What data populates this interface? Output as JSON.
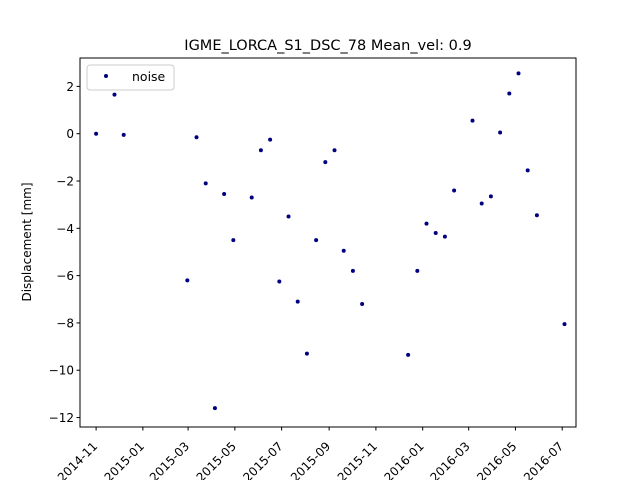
{
  "chart_data": {
    "type": "scatter",
    "title": "IGME_LORCA_S1_DSC_78     Mean_vel: 0.9",
    "xlabel": "",
    "ylabel": "Displacement [mm]",
    "xlim": [
      "2014-10-11",
      "2016-07-19"
    ],
    "ylim": [
      -12.4,
      3.2
    ],
    "xticks": [
      "2014-11",
      "2015-01",
      "2015-03",
      "2015-05",
      "2015-07",
      "2015-09",
      "2015-11",
      "2016-01",
      "2016-03",
      "2016-05",
      "2016-07"
    ],
    "yticks": [
      2,
      0,
      -2,
      -4,
      -6,
      -8,
      -10,
      -12
    ],
    "grid": false,
    "legend": {
      "location": "top-left",
      "entries": [
        "noise"
      ]
    },
    "series": [
      {
        "name": "noise",
        "color": "#000080",
        "marker": "circle",
        "points": [
          {
            "x": "2014-11-01",
            "y": 0.0
          },
          {
            "x": "2014-11-25",
            "y": 1.65
          },
          {
            "x": "2014-12-07",
            "y": -0.05
          },
          {
            "x": "2015-02-28",
            "y": -6.2
          },
          {
            "x": "2015-03-12",
            "y": -0.15
          },
          {
            "x": "2015-03-24",
            "y": -2.1
          },
          {
            "x": "2015-04-05",
            "y": -11.6
          },
          {
            "x": "2015-04-17",
            "y": -2.55
          },
          {
            "x": "2015-04-29",
            "y": -4.5
          },
          {
            "x": "2015-05-23",
            "y": -2.7
          },
          {
            "x": "2015-06-04",
            "y": -0.7
          },
          {
            "x": "2015-06-16",
            "y": -0.25
          },
          {
            "x": "2015-06-28",
            "y": -6.25
          },
          {
            "x": "2015-07-10",
            "y": -3.5
          },
          {
            "x": "2015-07-22",
            "y": -7.1
          },
          {
            "x": "2015-08-03",
            "y": -9.3
          },
          {
            "x": "2015-08-15",
            "y": -4.5
          },
          {
            "x": "2015-08-27",
            "y": -1.2
          },
          {
            "x": "2015-09-08",
            "y": -0.7
          },
          {
            "x": "2015-09-20",
            "y": -4.95
          },
          {
            "x": "2015-10-02",
            "y": -5.8
          },
          {
            "x": "2015-10-14",
            "y": -7.2
          },
          {
            "x": "2015-12-13",
            "y": -9.35
          },
          {
            "x": "2015-12-25",
            "y": -5.8
          },
          {
            "x": "2016-01-06",
            "y": -3.8
          },
          {
            "x": "2016-01-18",
            "y": -4.2
          },
          {
            "x": "2016-01-30",
            "y": -4.35
          },
          {
            "x": "2016-02-11",
            "y": -2.4
          },
          {
            "x": "2016-03-06",
            "y": 0.55
          },
          {
            "x": "2016-03-18",
            "y": -2.95
          },
          {
            "x": "2016-03-30",
            "y": -2.65
          },
          {
            "x": "2016-04-11",
            "y": 0.05
          },
          {
            "x": "2016-04-23",
            "y": 1.7
          },
          {
            "x": "2016-05-05",
            "y": 2.55
          },
          {
            "x": "2016-05-17",
            "y": -1.55
          },
          {
            "x": "2016-05-29",
            "y": -3.45
          },
          {
            "x": "2016-07-04",
            "y": -8.05
          }
        ]
      }
    ]
  }
}
